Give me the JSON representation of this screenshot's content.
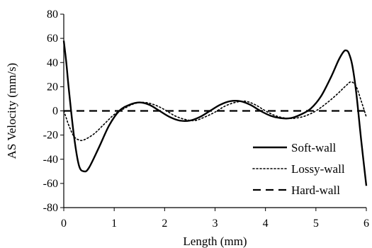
{
  "chart_data": {
    "type": "line",
    "title": "",
    "xlabel": "Length (mm)",
    "ylabel": "AS Velocity (mm/s)",
    "xlim": [
      0,
      6
    ],
    "ylim": [
      -80,
      80
    ],
    "x_ticks": [
      0,
      1,
      2,
      3,
      4,
      5,
      6
    ],
    "y_ticks": [
      -80,
      -60,
      -40,
      -20,
      0,
      20,
      40,
      60,
      80
    ],
    "grid": false,
    "legend_position": "bottom-right",
    "series": [
      {
        "name": "Soft-wall",
        "style": "solid",
        "color": "#000000",
        "x": [
          0,
          0.05,
          0.1,
          0.2,
          0.3,
          0.4,
          0.5,
          0.7,
          0.9,
          1.1,
          1.3,
          1.5,
          1.7,
          1.9,
          2.1,
          2.3,
          2.5,
          2.7,
          2.9,
          3.1,
          3.3,
          3.5,
          3.7,
          3.9,
          4.1,
          4.3,
          4.5,
          4.7,
          4.9,
          5.1,
          5.3,
          5.45,
          5.55,
          5.6,
          5.65,
          5.72,
          5.8,
          5.9,
          6.0
        ],
        "y": [
          58,
          40,
          18,
          -20,
          -45,
          -50,
          -47,
          -30,
          -12,
          0,
          5,
          7,
          5,
          0,
          -5,
          -8,
          -8,
          -5,
          0,
          5,
          8,
          8,
          5,
          0,
          -4,
          -6,
          -6,
          -3,
          2,
          12,
          28,
          42,
          49,
          50,
          48,
          38,
          15,
          -25,
          -62
        ]
      },
      {
        "name": "Lossy-wall",
        "style": "dotted",
        "color": "#000000",
        "x": [
          0,
          0.05,
          0.1,
          0.2,
          0.3,
          0.4,
          0.6,
          0.8,
          1.0,
          1.2,
          1.4,
          1.6,
          1.8,
          2.0,
          2.2,
          2.4,
          2.6,
          2.8,
          3.0,
          3.2,
          3.4,
          3.6,
          3.8,
          4.0,
          4.2,
          4.4,
          4.6,
          4.8,
          5.0,
          5.2,
          5.4,
          5.6,
          5.7,
          5.8,
          5.9,
          6.0
        ],
        "y": [
          0,
          -6,
          -12,
          -21,
          -24,
          -24,
          -19,
          -11,
          -3,
          2,
          6,
          7,
          5,
          1,
          -4,
          -7,
          -8,
          -5,
          -1,
          4,
          7,
          8,
          5,
          0,
          -4,
          -6,
          -6,
          -4,
          0,
          6,
          13,
          21,
          24,
          20,
          8,
          -5
        ]
      },
      {
        "name": "Hard-wall",
        "style": "dashed",
        "color": "#000000",
        "x": [
          0,
          6
        ],
        "y": [
          0,
          0
        ]
      }
    ]
  }
}
